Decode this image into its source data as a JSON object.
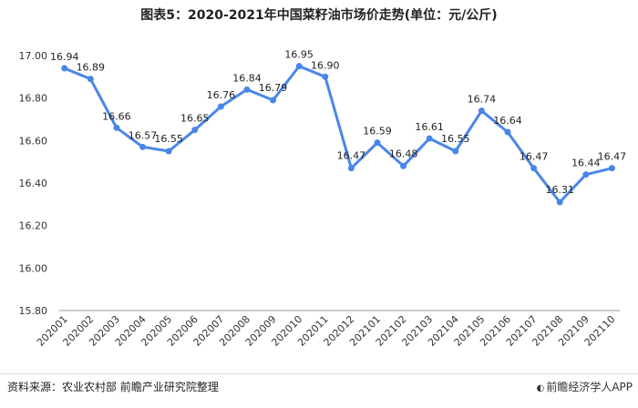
{
  "chart_data": {
    "type": "line",
    "title": "图表5：2020-2021年中国菜籽油市场价走势(单位：元/公斤)",
    "categories": [
      "202001",
      "202002",
      "202003",
      "202004",
      "202005",
      "202006",
      "202007",
      "202008",
      "202009",
      "202010",
      "202011",
      "202012",
      "202101",
      "202102",
      "202103",
      "202104",
      "202105",
      "202106",
      "202107",
      "202108",
      "202109",
      "202110"
    ],
    "series": [
      {
        "values": [
          16.94,
          16.89,
          16.66,
          16.57,
          16.55,
          16.65,
          16.76,
          16.84,
          16.79,
          16.95,
          16.9,
          16.47,
          16.59,
          16.48,
          16.61,
          16.55,
          16.74,
          16.64,
          16.47,
          16.31,
          16.44,
          16.47
        ],
        "labels": [
          "16.94",
          "16.89",
          "16.66",
          "16.57",
          "16.55",
          "16.65",
          "16.76",
          "16.84",
          "16.79",
          "16.95",
          "16.90",
          "16.47",
          "16.59",
          "16.48",
          "16.61",
          "16.55",
          "16.74",
          "16.64",
          "16.47",
          "16.31",
          "16.44",
          "16.47"
        ]
      }
    ],
    "ylim": [
      15.8,
      17.0
    ],
    "yticks": [
      15.8,
      16.0,
      16.2,
      16.4,
      16.6,
      16.8,
      17.0
    ],
    "ytick_labels": [
      "15.80",
      "16.00",
      "16.20",
      "16.40",
      "16.60",
      "16.80",
      "17.00"
    ],
    "grid": false,
    "line_color": "#4a86e8"
  },
  "source": "资料来源：农业农村部 前瞻产业研究院整理",
  "credit": "前瞻经济学人APP",
  "credit_icon": "leaf-logo-icon"
}
